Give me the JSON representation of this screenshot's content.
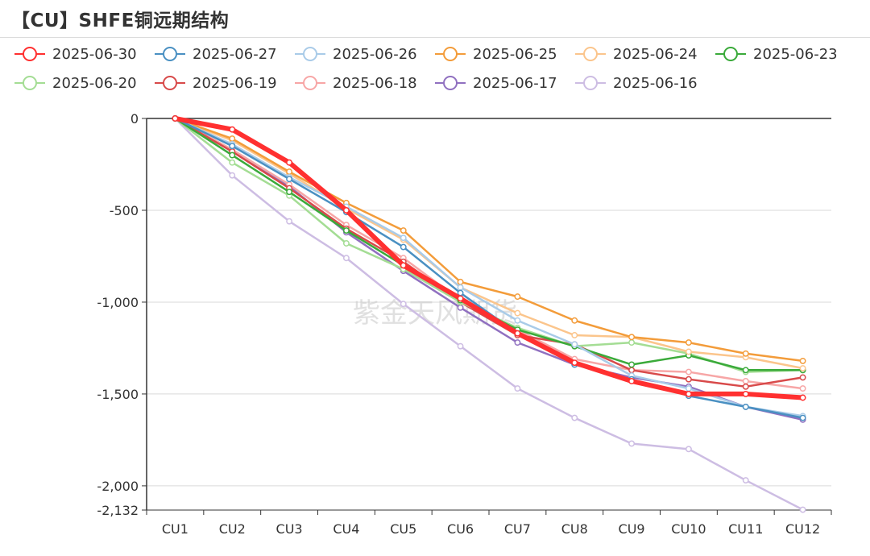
{
  "title": "【CU】SHFE铜远期结构",
  "watermark": "紫金天风期货",
  "chart_data": {
    "type": "line",
    "categories": [
      "CU1",
      "CU2",
      "CU3",
      "CU4",
      "CU5",
      "CU6",
      "CU7",
      "CU8",
      "CU9",
      "CU10",
      "CU11",
      "CU12"
    ],
    "ylim": [
      -2132,
      0
    ],
    "yticks": [
      0,
      -500,
      -1000,
      -1500,
      -2000,
      -2132
    ],
    "ytick_labels": [
      "0",
      "-500",
      "-1,000",
      "-1,500",
      "-2,000",
      "-2,132"
    ],
    "legend_position": "top",
    "grid": true,
    "series": [
      {
        "name": "2025-06-30",
        "color": "#ff3030",
        "values": [
          0,
          -60,
          -240,
          -500,
          -800,
          -980,
          -1170,
          -1330,
          -1430,
          -1500,
          -1500,
          -1520
        ]
      },
      {
        "name": "2025-06-27",
        "color": "#4a90c2",
        "values": [
          0,
          -150,
          -330,
          -510,
          -700,
          -950,
          -1170,
          -1340,
          -1420,
          -1510,
          -1570,
          -1630
        ]
      },
      {
        "name": "2025-06-26",
        "color": "#a9cbe8",
        "values": [
          0,
          -140,
          -320,
          -480,
          -650,
          -920,
          -1100,
          -1230,
          -1400,
          -1470,
          -1570,
          -1620
        ]
      },
      {
        "name": "2025-06-25",
        "color": "#f39c3a",
        "values": [
          0,
          -110,
          -290,
          -460,
          -610,
          -890,
          -970,
          -1100,
          -1190,
          -1220,
          -1280,
          -1320
        ]
      },
      {
        "name": "2025-06-24",
        "color": "#fbc58c",
        "values": [
          0,
          -120,
          -300,
          -490,
          -660,
          -920,
          -1060,
          -1180,
          -1190,
          -1270,
          -1300,
          -1360
        ]
      },
      {
        "name": "2025-06-23",
        "color": "#3aaa3a",
        "values": [
          0,
          -200,
          -400,
          -610,
          -800,
          -990,
          -1150,
          -1240,
          -1340,
          -1290,
          -1370,
          -1370
        ]
      },
      {
        "name": "2025-06-20",
        "color": "#a4dd94",
        "values": [
          0,
          -240,
          -420,
          -680,
          -820,
          -1000,
          -1140,
          -1240,
          -1220,
          -1280,
          -1380,
          -1370
        ]
      },
      {
        "name": "2025-06-19",
        "color": "#d84a4a",
        "values": [
          0,
          -180,
          -380,
          -600,
          -780,
          -1000,
          -1180,
          -1230,
          -1370,
          -1420,
          -1460,
          -1410
        ]
      },
      {
        "name": "2025-06-18",
        "color": "#f7a6a6",
        "values": [
          0,
          -170,
          -360,
          -580,
          -760,
          -990,
          -1150,
          -1310,
          -1370,
          -1380,
          -1430,
          -1470
        ]
      },
      {
        "name": "2025-06-17",
        "color": "#9070c0",
        "values": [
          0,
          -180,
          -370,
          -620,
          -830,
          -1030,
          -1220,
          -1340,
          -1410,
          -1460,
          -1570,
          -1640
        ]
      },
      {
        "name": "2025-06-16",
        "color": "#cdbde3",
        "values": [
          0,
          -310,
          -560,
          -760,
          -1010,
          -1240,
          -1470,
          -1630,
          -1770,
          -1800,
          -1970,
          -2130
        ]
      }
    ]
  }
}
